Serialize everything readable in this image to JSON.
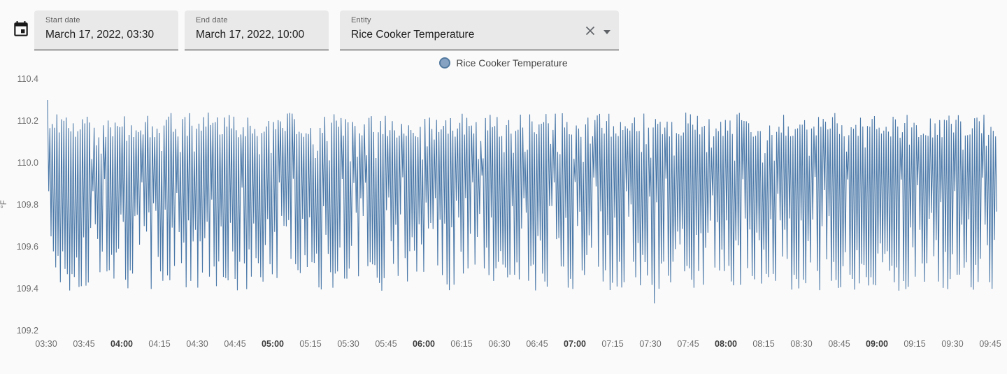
{
  "colors": {
    "page_bg": "#fafafa",
    "field_bg": "#e9e9e9",
    "field_underline": "#1f1f1f",
    "field_label": "#5e5e5e",
    "field_value": "#1c1c1c",
    "icon_gray": "#5f6368",
    "calendar_icon": "#1a1a1a",
    "legend_text": "#454545",
    "tick_text": "#6e6e6e",
    "tick_text_bold": "#3c3c3c",
    "series_line": "#4a78a8",
    "legend_marker_fill": "#86a2c3",
    "legend_marker_border": "#51799f"
  },
  "toolbar": {
    "calendar_icon": "calendar-range",
    "start_date": {
      "label": "Start date",
      "value": "March 17, 2022, 03:30"
    },
    "end_date": {
      "label": "End date",
      "value": "March 17, 2022, 10:00"
    },
    "entity": {
      "label": "Entity",
      "value": "Rice Cooker Temperature"
    }
  },
  "legend": {
    "items": [
      {
        "label": "Rice Cooker Temperature"
      }
    ]
  },
  "chart_data": {
    "type": "line",
    "title": "",
    "xlabel": "",
    "ylabel": "°F",
    "ylim": [
      109.2,
      110.4
    ],
    "grid": false,
    "legend_position": "top-center",
    "series": [
      {
        "name": "Rice Cooker Temperature",
        "color": "#4a78a8"
      }
    ],
    "y_ticks": [
      "110.4",
      "110.2",
      "110.0",
      "109.8",
      "109.6",
      "109.4",
      "109.2"
    ],
    "x_ticks": [
      {
        "label": "03:30",
        "bold": false
      },
      {
        "label": "03:45",
        "bold": false
      },
      {
        "label": "04:00",
        "bold": true
      },
      {
        "label": "04:15",
        "bold": false
      },
      {
        "label": "04:30",
        "bold": false
      },
      {
        "label": "04:45",
        "bold": false
      },
      {
        "label": "05:00",
        "bold": true
      },
      {
        "label": "05:15",
        "bold": false
      },
      {
        "label": "05:30",
        "bold": false
      },
      {
        "label": "05:45",
        "bold": false
      },
      {
        "label": "06:00",
        "bold": true
      },
      {
        "label": "06:15",
        "bold": false
      },
      {
        "label": "06:30",
        "bold": false
      },
      {
        "label": "06:45",
        "bold": false
      },
      {
        "label": "07:00",
        "bold": true
      },
      {
        "label": "07:15",
        "bold": false
      },
      {
        "label": "07:30",
        "bold": false
      },
      {
        "label": "07:45",
        "bold": false
      },
      {
        "label": "08:00",
        "bold": true
      },
      {
        "label": "08:15",
        "bold": false
      },
      {
        "label": "08:30",
        "bold": false
      },
      {
        "label": "08:45",
        "bold": false
      },
      {
        "label": "09:00",
        "bold": true
      },
      {
        "label": "09:15",
        "bold": false
      },
      {
        "label": "09:30",
        "bold": false
      },
      {
        "label": "09:45",
        "bold": false
      }
    ],
    "x_start": "03:30",
    "x_end": "09:47",
    "oscillation": {
      "description": "Thermostat-style rapid cycling: ~408 heat cycles over ~6.3 h; highs ~110.00-110.25 °F (single peak 110.3 at start), lows mostly ~109.38-109.55 °F with some shallow dips to ~109.75-109.95 °F; one anomalous deep trough ~109.33 °F near 07:30",
      "cycles": 408,
      "seed": 1337,
      "start_peak": 110.3,
      "high_main_base": 110.12,
      "high_main_span": 0.12,
      "high_alt_base": 110.0,
      "high_alt_span": 0.13,
      "high_alt_prob": 0.15,
      "low_deep_base": 109.39,
      "low_deep_span": 0.14,
      "low_mid_base": 109.54,
      "low_mid_span": 0.2,
      "low_shallow_base": 109.73,
      "low_shallow_span": 0.21,
      "low_deep_prob": 0.5,
      "low_mid_prob": 0.3,
      "anomalies": [
        {
          "index": 260,
          "low": 109.33
        }
      ]
    }
  }
}
